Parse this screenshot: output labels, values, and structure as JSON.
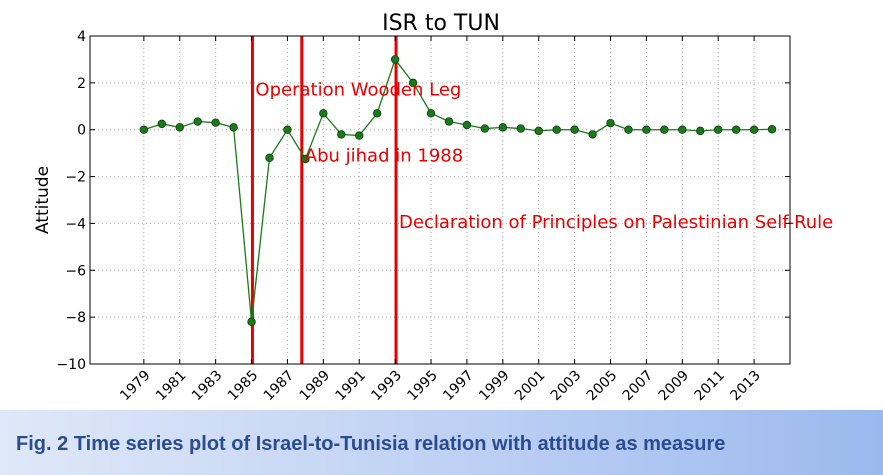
{
  "chart_data": {
    "type": "line",
    "title": "ISR to TUN",
    "xlabel": "",
    "ylabel": "Attitude",
    "xlim": [
      1976,
      2015
    ],
    "ylim": [
      -10,
      4
    ],
    "yticks": [
      4,
      2,
      0,
      -2,
      -4,
      -6,
      -8,
      -10
    ],
    "ytick_labels": [
      "4",
      "2",
      "0",
      "−2",
      "−4",
      "−6",
      "−8",
      "−10"
    ],
    "xticks": [
      1979,
      1981,
      1983,
      1985,
      1987,
      1989,
      1991,
      1993,
      1995,
      1997,
      1999,
      2001,
      2003,
      2005,
      2007,
      2009,
      2011,
      2013
    ],
    "xtick_labels": [
      "1979",
      "1981",
      "1983",
      "1985",
      "1987",
      "1989",
      "1991",
      "1993",
      "1995",
      "1997",
      "1999",
      "2001",
      "2003",
      "2005",
      "2007",
      "2009",
      "2011",
      "2013"
    ],
    "grid": true,
    "series": [
      {
        "color": "#1a7a1a",
        "x": [
          1979,
          1980,
          1981,
          1982,
          1983,
          1984,
          1985,
          1986,
          1987,
          1988,
          1989,
          1990,
          1991,
          1992,
          1993,
          1994,
          1995,
          1996,
          1997,
          1998,
          1999,
          2000,
          2001,
          2002,
          2003,
          2004,
          2005,
          2006,
          2007,
          2008,
          2009,
          2010,
          2011,
          2012,
          2013,
          2014
        ],
        "y": [
          0.0,
          0.25,
          0.1,
          0.35,
          0.3,
          0.1,
          -8.2,
          -1.2,
          0.0,
          -1.25,
          0.7,
          -0.2,
          -0.25,
          0.7,
          3.0,
          2.0,
          0.7,
          0.35,
          0.2,
          0.05,
          0.1,
          0.05,
          -0.05,
          0.0,
          0.0,
          -0.2,
          0.28,
          0.0,
          0.0,
          0.0,
          0.0,
          -0.05,
          0.0,
          0.0,
          0.0,
          0.02
        ]
      }
    ],
    "event_color": "#e80000",
    "events": [
      {
        "x": 1985.05,
        "label": "Operation Wooden Leg",
        "label_y": 1.45
      },
      {
        "x": 1987.8,
        "label": "Abu jihad in 1988",
        "label_y": -1.35
      },
      {
        "x": 1993.05,
        "label": "Declaration of Principles on Palestinian Self-Rule",
        "label_y": -4.2
      }
    ]
  },
  "caption": "Fig. 2 Time series plot of Israel-to-Tunisia relation with attitude as measure"
}
